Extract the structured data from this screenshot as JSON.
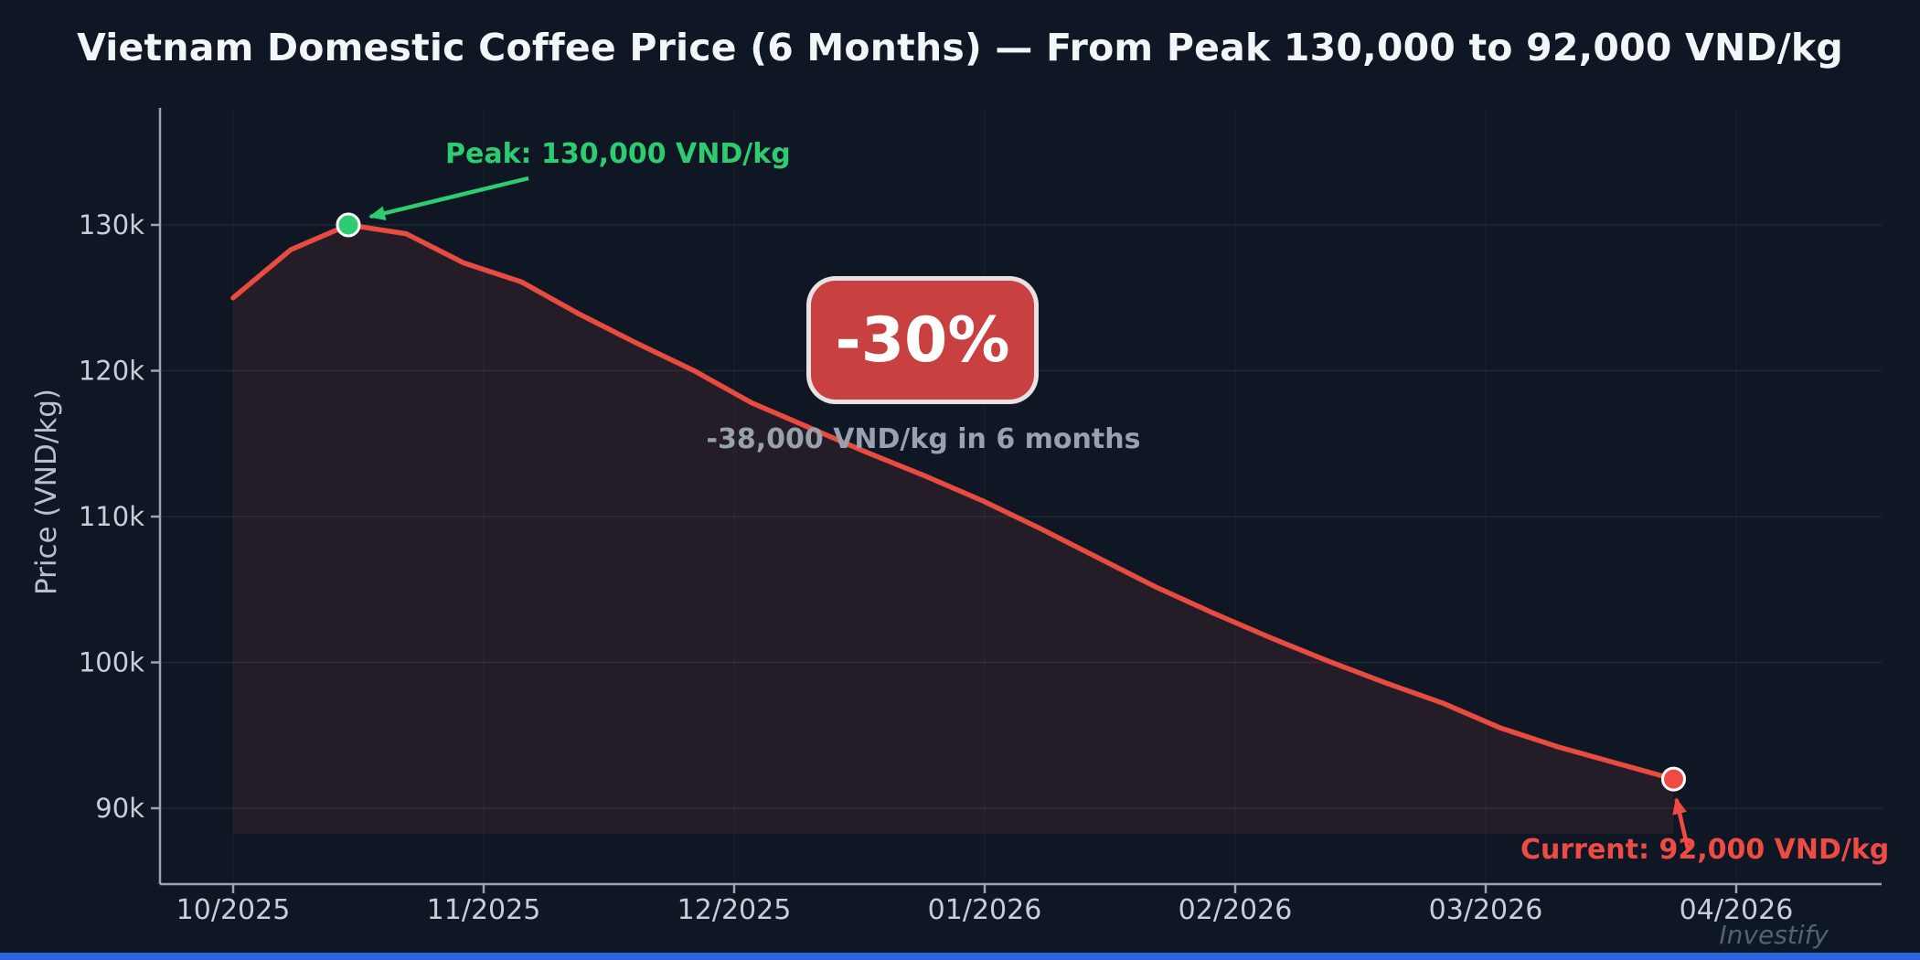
{
  "page": {
    "watermark": "Investify"
  },
  "colors": {
    "background": "#0e1723",
    "line_red": "#e84b40",
    "area_fill": "rgba(232,75,64,0.10)",
    "peak_green": "#2ecc71",
    "current_red": "#ef4b45",
    "badge_bg": "#c94040",
    "badge_border": "rgba(236,240,243,0.92)",
    "badge_text": "#ffffff",
    "grid_line": "rgba(255,255,255,0.07)",
    "grid_line_vertical": "rgba(255,255,255,0.035)",
    "axis_spine": "#9aa5b0",
    "tick_text": "#c6cfd8",
    "title_text": "#f3f6f8",
    "ylabel_text": "#b7c1cb",
    "muted_text": "#98a2ae",
    "watermark_text": "#4f6277",
    "bottom_bar": "#2d63e0"
  },
  "chart_data": {
    "type": "line",
    "title": "Vietnam Domestic Coffee Price (6 Months) — From Peak 130,000 to 92,000 VND/kg",
    "xlabel": "",
    "ylabel": "Price (VND/kg)",
    "x_unit": "months since 10/2025",
    "x": [
      0,
      0.23,
      0.46,
      0.69,
      0.92,
      1.15,
      1.38,
      1.61,
      1.84,
      2.07,
      2.3,
      2.53,
      2.76,
      2.99,
      3.22,
      3.45,
      3.68,
      3.91,
      4.14,
      4.37,
      4.6,
      4.83,
      5.06,
      5.29,
      5.52,
      5.75
    ],
    "values": [
      125000,
      128300,
      130000,
      129400,
      127400,
      126100,
      123900,
      121900,
      120000,
      117800,
      116100,
      114400,
      112800,
      111100,
      109200,
      107200,
      105200,
      103400,
      101700,
      100100,
      98600,
      97200,
      95500,
      94200,
      93100,
      92000
    ],
    "x_tick_positions": [
      0,
      1,
      2,
      3,
      4,
      5,
      6
    ],
    "x_tick_labels": [
      "10/2025",
      "11/2025",
      "12/2025",
      "01/2026",
      "02/2026",
      "03/2026",
      "04/2026"
    ],
    "y_tick_values": [
      90000,
      100000,
      110000,
      120000,
      130000
    ],
    "y_tick_labels": [
      "90k",
      "100k",
      "110k",
      "120k",
      "130k"
    ],
    "ylim": [
      84800,
      137900
    ],
    "grid": "on",
    "legend": "none",
    "annotations": {
      "peak": {
        "label": "Peak: 130,000 VND/kg",
        "x": 0.46,
        "value": 130000
      },
      "current": {
        "label": "Current: 92,000 VND/kg",
        "x": 5.75,
        "value": 92000
      },
      "change_badge": "-30%",
      "change_detail": "-38,000 VND/kg in 6 months"
    }
  }
}
